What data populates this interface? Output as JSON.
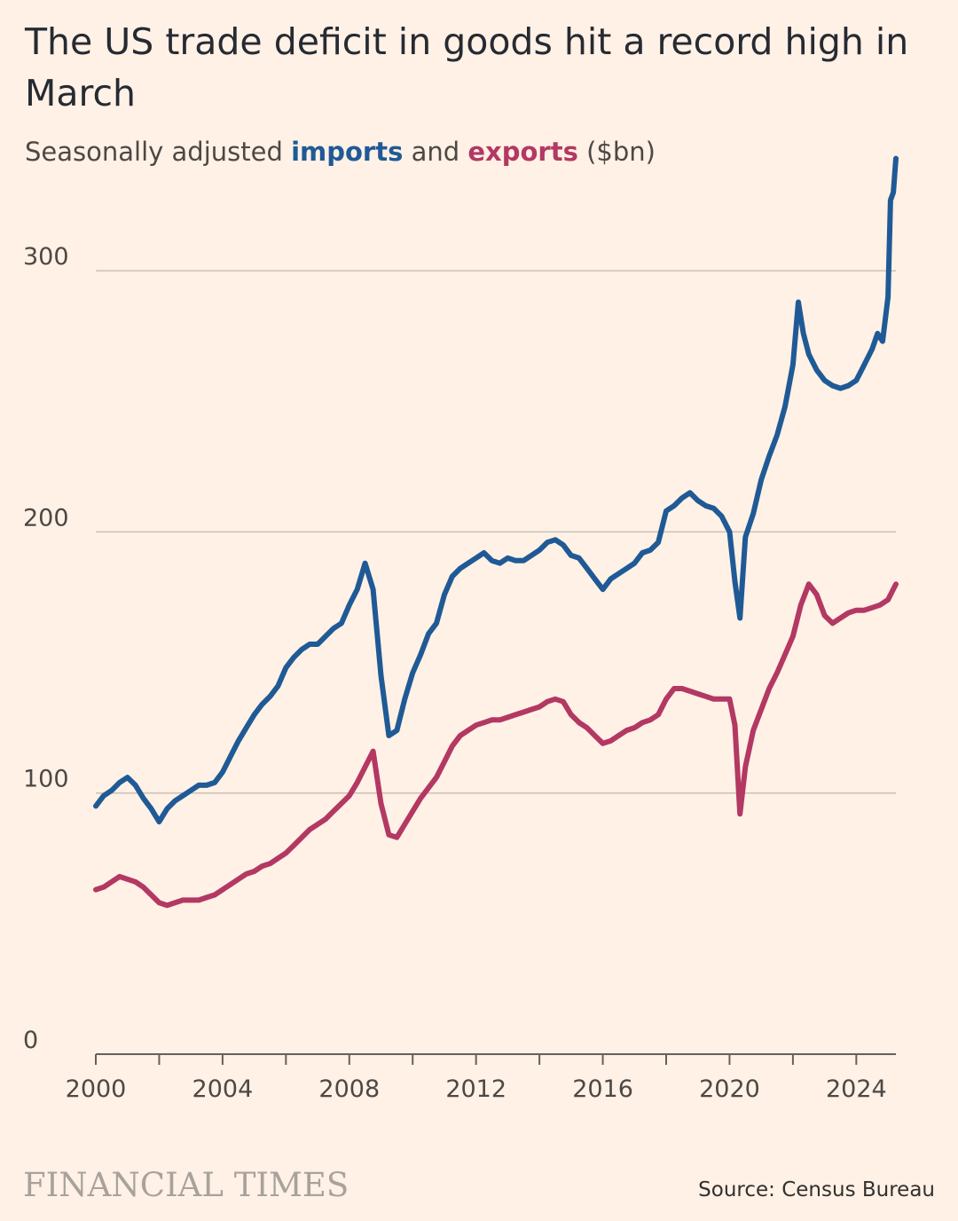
{
  "title": "The US trade deficit in goods hit a record high in March",
  "subtitle": {
    "prefix": "Seasonally adjusted ",
    "imports_word": "imports",
    "middle": " and ",
    "exports_word": "exports",
    "suffix": " ($bn)"
  },
  "source": "Source: Census Bureau",
  "logo": "FINANCIAL TIMES",
  "colors": {
    "imports": "#1f5a96",
    "exports": "#b33863",
    "background": "#fff1e5",
    "grid": "#ccc1b7"
  },
  "chart_data": {
    "type": "line",
    "ylim": [
      0,
      350
    ],
    "xlim": [
      2000,
      2025.25
    ],
    "y_ticks": [
      "0",
      "100",
      "200",
      "300"
    ],
    "x_ticks": [
      "2000",
      "2004",
      "2008",
      "2012",
      "2016",
      "2020",
      "2024"
    ],
    "grid": "horizontal",
    "series": [
      {
        "name": "imports",
        "x": [
          2000.0,
          2000.25,
          2000.5,
          2000.75,
          2001.0,
          2001.25,
          2001.5,
          2001.75,
          2002.0,
          2002.25,
          2002.5,
          2002.75,
          2003.0,
          2003.25,
          2003.5,
          2003.75,
          2004.0,
          2004.25,
          2004.5,
          2004.75,
          2005.0,
          2005.25,
          2005.5,
          2005.75,
          2006.0,
          2006.25,
          2006.5,
          2006.75,
          2007.0,
          2007.25,
          2007.5,
          2007.75,
          2008.0,
          2008.25,
          2008.5,
          2008.75,
          2009.0,
          2009.25,
          2009.5,
          2009.75,
          2010.0,
          2010.25,
          2010.5,
          2010.75,
          2011.0,
          2011.25,
          2011.5,
          2011.75,
          2012.0,
          2012.25,
          2012.5,
          2012.75,
          2013.0,
          2013.25,
          2013.5,
          2013.75,
          2014.0,
          2014.25,
          2014.5,
          2014.75,
          2015.0,
          2015.25,
          2015.5,
          2015.75,
          2016.0,
          2016.25,
          2016.5,
          2016.75,
          2017.0,
          2017.25,
          2017.5,
          2017.75,
          2018.0,
          2018.25,
          2018.5,
          2018.75,
          2019.0,
          2019.25,
          2019.5,
          2019.75,
          2020.0,
          2020.17,
          2020.33,
          2020.5,
          2020.75,
          2021.0,
          2021.25,
          2021.5,
          2021.75,
          2022.0,
          2022.17,
          2022.33,
          2022.5,
          2022.75,
          2023.0,
          2023.25,
          2023.5,
          2023.75,
          2024.0,
          2024.25,
          2024.5,
          2024.67,
          2024.83,
          2025.0,
          2025.08,
          2025.17,
          2025.25
        ],
        "values": [
          95,
          99,
          101,
          104,
          106,
          103,
          98,
          94,
          89,
          94,
          97,
          99,
          101,
          103,
          103,
          104,
          108,
          114,
          120,
          125,
          130,
          134,
          137,
          141,
          148,
          152,
          155,
          157,
          157,
          160,
          163,
          165,
          172,
          178,
          188,
          178,
          145,
          122,
          124,
          136,
          146,
          153,
          161,
          165,
          176,
          183,
          186,
          188,
          190,
          192,
          189,
          188,
          190,
          189,
          189,
          191,
          193,
          196,
          197,
          195,
          191,
          190,
          186,
          182,
          178,
          182,
          184,
          186,
          188,
          192,
          193,
          196,
          208,
          210,
          213,
          215,
          212,
          210,
          209,
          206,
          200,
          181,
          167,
          198,
          207,
          220,
          229,
          237,
          248,
          264,
          288,
          276,
          268,
          262,
          258,
          256,
          255,
          256,
          258,
          264,
          270,
          276,
          273,
          290,
          327,
          330,
          343
        ]
      },
      {
        "name": "exports",
        "x": [
          2000.0,
          2000.25,
          2000.5,
          2000.75,
          2001.0,
          2001.25,
          2001.5,
          2001.75,
          2002.0,
          2002.25,
          2002.5,
          2002.75,
          2003.0,
          2003.25,
          2003.5,
          2003.75,
          2004.0,
          2004.25,
          2004.5,
          2004.75,
          2005.0,
          2005.25,
          2005.5,
          2005.75,
          2006.0,
          2006.25,
          2006.5,
          2006.75,
          2007.0,
          2007.25,
          2007.5,
          2007.75,
          2008.0,
          2008.25,
          2008.5,
          2008.75,
          2009.0,
          2009.25,
          2009.5,
          2009.75,
          2010.0,
          2010.25,
          2010.5,
          2010.75,
          2011.0,
          2011.25,
          2011.5,
          2011.75,
          2012.0,
          2012.25,
          2012.5,
          2012.75,
          2013.0,
          2013.25,
          2013.5,
          2013.75,
          2014.0,
          2014.25,
          2014.5,
          2014.75,
          2015.0,
          2015.25,
          2015.5,
          2015.75,
          2016.0,
          2016.25,
          2016.5,
          2016.75,
          2017.0,
          2017.25,
          2017.5,
          2017.75,
          2018.0,
          2018.25,
          2018.5,
          2018.75,
          2019.0,
          2019.25,
          2019.5,
          2019.75,
          2020.0,
          2020.17,
          2020.33,
          2020.5,
          2020.75,
          2021.0,
          2021.25,
          2021.5,
          2021.75,
          2022.0,
          2022.25,
          2022.5,
          2022.75,
          2023.0,
          2023.25,
          2023.5,
          2023.75,
          2024.0,
          2024.25,
          2024.5,
          2024.75,
          2025.0,
          2025.25
        ],
        "values": [
          63,
          64,
          66,
          68,
          67,
          66,
          64,
          61,
          58,
          57,
          58,
          59,
          59,
          59,
          60,
          61,
          63,
          65,
          67,
          69,
          70,
          72,
          73,
          75,
          77,
          80,
          83,
          86,
          88,
          90,
          93,
          96,
          99,
          104,
          110,
          116,
          96,
          84,
          83,
          88,
          93,
          98,
          102,
          106,
          112,
          118,
          122,
          124,
          126,
          127,
          128,
          128,
          129,
          130,
          131,
          132,
          133,
          135,
          136,
          135,
          130,
          127,
          125,
          122,
          119,
          120,
          122,
          124,
          125,
          127,
          128,
          130,
          136,
          140,
          140,
          139,
          138,
          137,
          136,
          136,
          136,
          126,
          92,
          110,
          124,
          132,
          140,
          146,
          153,
          160,
          172,
          180,
          176,
          168,
          165,
          167,
          169,
          170,
          170,
          171,
          172,
          174,
          180
        ]
      }
    ]
  }
}
